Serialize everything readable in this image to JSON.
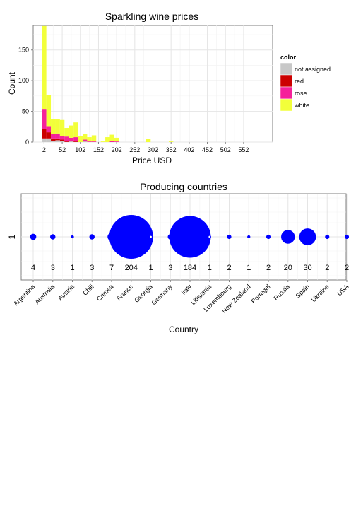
{
  "chart_data": [
    {
      "type": "bar",
      "stacked": true,
      "title": "Sparkling wine prices",
      "xlabel": "Price USD",
      "ylabel": "Count",
      "x_ticks": [
        2,
        52,
        102,
        152,
        202,
        252,
        302,
        352,
        402,
        452,
        502,
        552
      ],
      "y_ticks": [
        0,
        50,
        100,
        150
      ],
      "xlim": [
        -28,
        632
      ],
      "ylim": [
        0,
        190
      ],
      "bin_width": 12.5,
      "bin_starts": [
        -4.25,
        8.25,
        20.75,
        33.25,
        45.75,
        58.25,
        70.75,
        83.25,
        95.75,
        108.25,
        120.75,
        133.25,
        145.75,
        158.25,
        170.75,
        183.25,
        195.75,
        208.25,
        220.75,
        233.25,
        245.75,
        258.25,
        270.75,
        283.25,
        295.75,
        308.25,
        320.75,
        333.25,
        345.75,
        358.25
      ],
      "legend_title": "color",
      "legend_position": "right",
      "grid": true,
      "series": [
        {
          "name": "not assigned",
          "color": "#c8c8c8",
          "values": [
            6,
            6,
            2,
            3,
            2,
            0,
            1,
            0,
            0,
            1,
            0,
            0,
            0,
            0,
            0,
            0,
            0,
            0,
            0,
            0,
            0,
            0,
            0,
            0,
            0,
            0,
            0,
            0,
            0,
            0
          ]
        },
        {
          "name": "red",
          "color": "#cc0000",
          "values": [
            15,
            10,
            4,
            3,
            2,
            1,
            1,
            1,
            0,
            1,
            0,
            0,
            0,
            0,
            0,
            0,
            0,
            0,
            0,
            0,
            0,
            0,
            0,
            0,
            0,
            0,
            0,
            0,
            0,
            0
          ]
        },
        {
          "name": "rose",
          "color": "#f5219a",
          "values": [
            33,
            10,
            7,
            8,
            6,
            8,
            5,
            7,
            0,
            2,
            1,
            1,
            0,
            0,
            0,
            2,
            1,
            0,
            0,
            0,
            0,
            0,
            0,
            0,
            0,
            0,
            0,
            0,
            0,
            0
          ]
        },
        {
          "name": "white",
          "color": "#f2ff3a",
          "values": [
            135,
            50,
            25,
            23,
            26,
            14,
            20,
            24,
            10,
            9,
            7,
            10,
            0,
            1,
            8,
            10,
            6,
            0,
            0,
            0,
            0,
            0,
            0,
            5,
            0,
            0,
            0,
            0,
            1,
            0
          ]
        }
      ]
    },
    {
      "type": "scatter",
      "variant": "bubble",
      "title": "Producing countries",
      "xlabel": "Country",
      "ylabel": "",
      "y_ticks": [
        "1"
      ],
      "marker_color": "#0000ff",
      "categories": [
        "Argentina",
        "Australia",
        "Austria",
        "Chili",
        "Crimea",
        "France",
        "Georgia",
        "Germany",
        "Italy",
        "Lithuania",
        "Luxembourg",
        "New Zealand",
        "Portugal",
        "Russia",
        "Spain",
        "Ukraine",
        "USA"
      ],
      "values": [
        4,
        3,
        1,
        3,
        7,
        204,
        1,
        3,
        184,
        1,
        2,
        1,
        2,
        20,
        30,
        2,
        2
      ],
      "count_labels": [
        "4",
        "3",
        "1",
        "3",
        "7",
        "204",
        "1",
        "3",
        "184",
        "1",
        "2",
        "1",
        "2",
        "20",
        "30",
        "2",
        "2"
      ],
      "grid": true
    }
  ]
}
